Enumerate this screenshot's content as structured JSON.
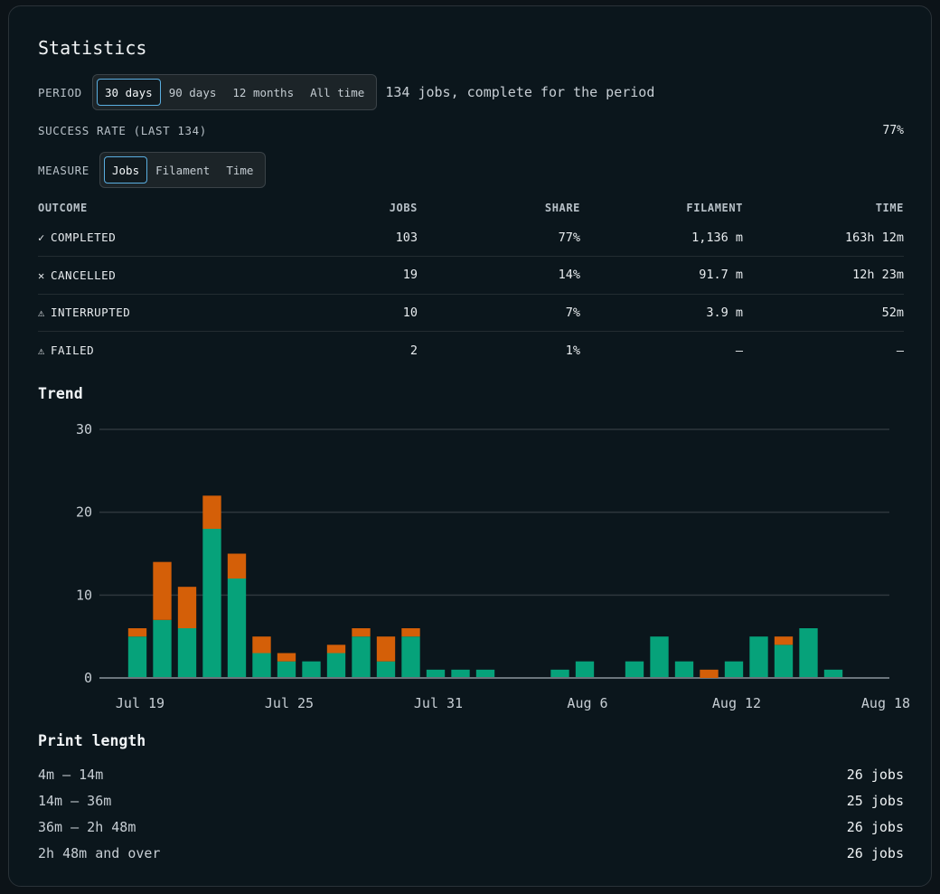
{
  "title": "Statistics",
  "period": {
    "label": "PERIOD",
    "options": [
      "30 days",
      "90 days",
      "12 months",
      "All time"
    ],
    "active": 0,
    "summary": "134 jobs, complete for the period"
  },
  "success_rate": {
    "label": "SUCCESS RATE (LAST 134)",
    "value": "77%"
  },
  "measure": {
    "label": "MEASURE",
    "options": [
      "Jobs",
      "Filament",
      "Time"
    ],
    "active": 0
  },
  "outcomes": {
    "headers": [
      "OUTCOME",
      "JOBS",
      "SHARE",
      "FILAMENT",
      "TIME"
    ],
    "rows": [
      {
        "icon": "✓",
        "icon_name": "check-icon",
        "name": "COMPLETED",
        "color": "#2ec08f",
        "jobs": "103",
        "share": "77%",
        "filament": "1,136 m",
        "time": "163h 12m"
      },
      {
        "icon": "✕",
        "icon_name": "x-icon",
        "name": "CANCELLED",
        "color": "#bcc4ca",
        "jobs": "19",
        "share": "14%",
        "filament": "91.7 m",
        "time": "12h 23m"
      },
      {
        "icon": "⚠",
        "icon_name": "warning-icon",
        "name": "INTERRUPTED",
        "color": "#e0a640",
        "jobs": "10",
        "share": "7%",
        "filament": "3.9 m",
        "time": "52m"
      },
      {
        "icon": "⚠",
        "icon_name": "warning-icon",
        "name": "FAILED",
        "color": "#e0a640",
        "jobs": "2",
        "share": "1%",
        "filament": "—",
        "time": "—"
      }
    ]
  },
  "trend_title": "Trend",
  "chart_data": {
    "type": "bar",
    "stacked": true,
    "y_ticks": [
      "0",
      "10",
      "20",
      "30"
    ],
    "ylim": [
      0,
      30
    ],
    "x_tick_labels": [
      "Jul 19",
      "Jul 25",
      "Jul 31",
      "Aug 6",
      "Aug 12",
      "Aug 18"
    ],
    "grid": true,
    "colors": {
      "completed": "#06a27a",
      "other": "#d45f08",
      "grid": "#2e373d",
      "axis": "#6b757c"
    },
    "categories": [
      "Jul 19",
      "Jul 20",
      "Jul 21",
      "Jul 22",
      "Jul 23",
      "Jul 24",
      "Jul 25",
      "Jul 26",
      "Jul 27",
      "Jul 28",
      "Jul 29",
      "Jul 30",
      "Jul 31",
      "Aug 1",
      "Aug 2",
      "Aug 3",
      "Aug 4",
      "Aug 5",
      "Aug 6",
      "Aug 7",
      "Aug 8",
      "Aug 9",
      "Aug 10",
      "Aug 11",
      "Aug 12",
      "Aug 13",
      "Aug 14",
      "Aug 15",
      "Aug 16",
      "Aug 17",
      "Aug 18"
    ],
    "series": [
      {
        "values": [
          5,
          7,
          6,
          18,
          12,
          3,
          2,
          2,
          3,
          5,
          2,
          5,
          1,
          1,
          1,
          0,
          0,
          1,
          2,
          0,
          2,
          5,
          2,
          0,
          2,
          5,
          4,
          6,
          1,
          0,
          0
        ]
      },
      {
        "values": [
          1,
          7,
          5,
          4,
          3,
          2,
          1,
          0,
          1,
          1,
          3,
          1,
          0,
          0,
          0,
          0,
          0,
          0,
          0,
          0,
          0,
          0,
          0,
          1,
          0,
          0,
          1,
          0,
          0,
          0,
          0
        ]
      }
    ]
  },
  "print_length": {
    "title": "Print length",
    "rows": [
      {
        "range": "4m – 14m",
        "count": "26 jobs"
      },
      {
        "range": "14m – 36m",
        "count": "25 jobs"
      },
      {
        "range": "36m – 2h 48m",
        "count": "26 jobs"
      },
      {
        "range": "2h 48m and over",
        "count": "26 jobs"
      }
    ]
  }
}
